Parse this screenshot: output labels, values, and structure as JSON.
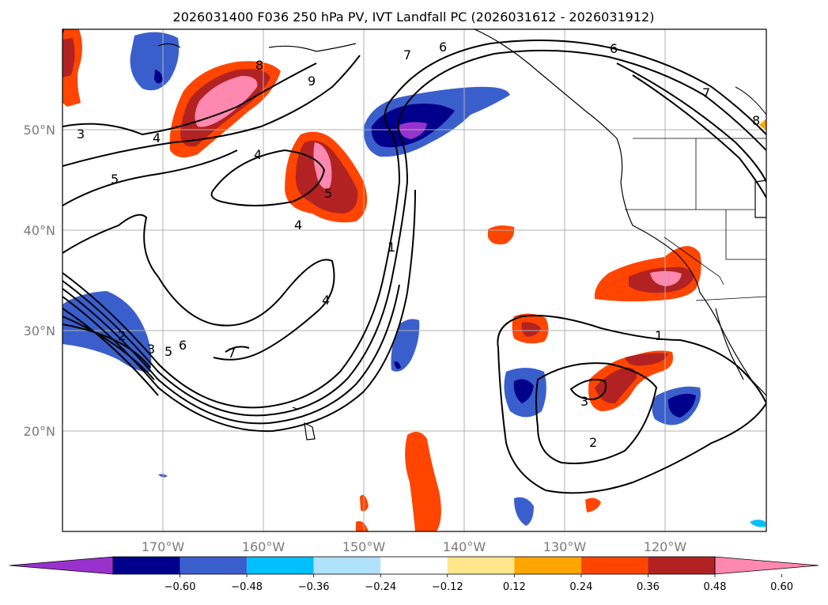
{
  "title": "2026031400 F036 250 hPa PV, IVT Landfall PC (2026031612 - 2026031912)",
  "map": {
    "lon_ticks": [
      "170°W",
      "160°W",
      "150°W",
      "140°W",
      "130°W",
      "120°W"
    ],
    "lat_ticks": [
      "50°N",
      "40°N",
      "30°N",
      "20°N"
    ],
    "lon_range": [
      -180,
      -110
    ],
    "lat_range": [
      10,
      60
    ],
    "grid": true
  },
  "colorbar": {
    "ticks": [
      "−0.60",
      "−0.48",
      "−0.36",
      "−0.24",
      "−0.12",
      "0.12",
      "0.24",
      "0.36",
      "0.48",
      "0.60"
    ],
    "colors": [
      "#9932cc",
      "#00008b",
      "#3a5fcd",
      "#00bfff",
      "#b0e2ff",
      "#ffffff",
      "#ffe68c",
      "#ffa500",
      "#ff4500",
      "#b22222",
      "#ff88b0"
    ],
    "extend": "both"
  },
  "contour_labels": [
    "3",
    "4",
    "5",
    "8",
    "9",
    "7",
    "6",
    "6",
    "7",
    "8",
    "4",
    "5",
    "4",
    "1",
    "4",
    "2",
    "3",
    "5",
    "6",
    "7",
    "1",
    "3",
    "2"
  ],
  "colors": {
    "land": "#ffffff",
    "coast": "#000000",
    "grid": "#b0b0b0"
  }
}
